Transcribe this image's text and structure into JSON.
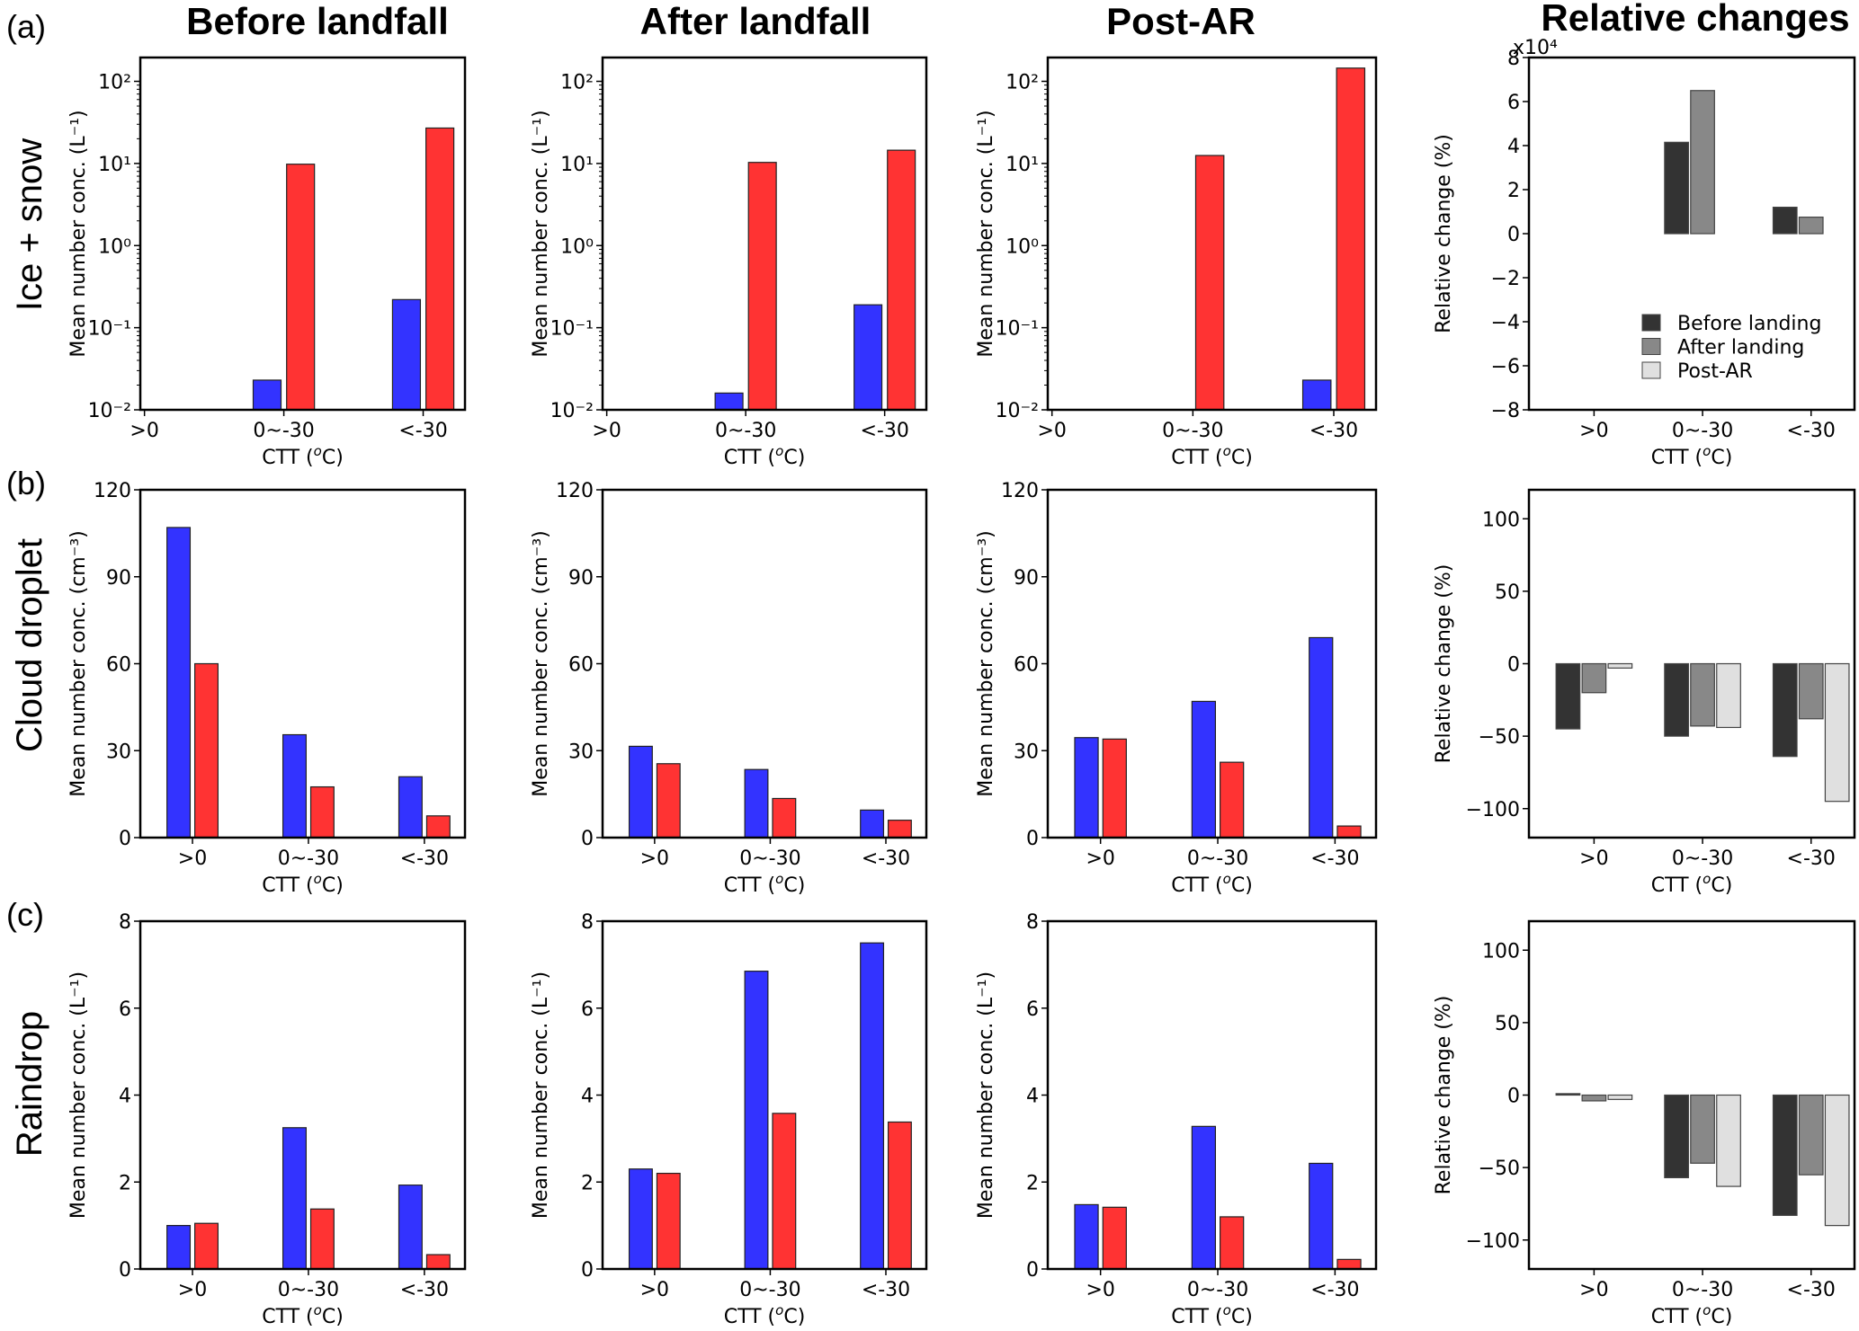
{
  "column_titles": [
    "Before landfall",
    "After landfall",
    "Post-AR",
    "Relative changes"
  ],
  "row_labels": [
    "Ice + snow",
    "Cloud droplet",
    "Raindrop"
  ],
  "panel_labels": [
    "(a)",
    "(b)",
    "(c)"
  ],
  "colors": {
    "blue": "#3333ff",
    "red": "#ff3333",
    "before_landing": "#333333",
    "after_landing": "#888888",
    "post_ar": "#e0e0e0"
  },
  "chart_data": [
    {
      "type": "bar",
      "row": "Ice + snow",
      "column": "Before landfall",
      "categories": [
        ">0",
        "0~-30",
        "<-30"
      ],
      "yscale": "log",
      "ylim": [
        0.01,
        195
      ],
      "ytick_labels": [
        "10⁻²",
        "10⁻¹",
        "10⁰",
        "10¹",
        "10²"
      ],
      "ylabel": "Mean number conc. (L⁻¹)",
      "xlabel": {
        "pre": "CTT (",
        "sup": "o",
        "post": "C)"
      },
      "series": [
        {
          "color": "#3333ff",
          "values": [
            null,
            0.023,
            0.22
          ]
        },
        {
          "color": "#ff3333",
          "values": [
            null,
            9.8,
            27
          ]
        }
      ]
    },
    {
      "type": "bar",
      "row": "Ice + snow",
      "column": "After landfall",
      "categories": [
        ">0",
        "0~-30",
        "<-30"
      ],
      "yscale": "log",
      "ylim": [
        0.01,
        195
      ],
      "ytick_labels": [
        "10⁻²",
        "10⁻¹",
        "10⁰",
        "10¹",
        "10²"
      ],
      "ylabel": "Mean number conc. (L⁻¹)",
      "xlabel": {
        "pre": "CTT (",
        "sup": "o",
        "post": "C)"
      },
      "series": [
        {
          "color": "#3333ff",
          "values": [
            null,
            0.016,
            0.19
          ]
        },
        {
          "color": "#ff3333",
          "values": [
            null,
            10.3,
            14.5
          ]
        }
      ]
    },
    {
      "type": "bar",
      "row": "Ice + snow",
      "column": "Post-AR",
      "categories": [
        ">0",
        "0~-30",
        "<-30"
      ],
      "yscale": "log",
      "ylim": [
        0.01,
        195
      ],
      "ytick_labels": [
        "10⁻²",
        "10⁻¹",
        "10⁰",
        "10¹",
        "10²"
      ],
      "ylabel": "Mean number conc. (L⁻¹)",
      "xlabel": {
        "pre": "CTT (",
        "sup": "o",
        "post": "C)"
      },
      "series": [
        {
          "color": "#3333ff",
          "values": [
            null,
            null,
            0.023
          ]
        },
        {
          "color": "#ff3333",
          "values": [
            null,
            12.5,
            145
          ]
        }
      ]
    },
    {
      "type": "bar",
      "row": "Ice + snow",
      "column": "Relative changes",
      "categories": [
        ">0",
        "0~-30",
        "<-30"
      ],
      "ylim": [
        -8,
        8
      ],
      "yticks": [
        -8,
        -6,
        -4,
        -2,
        0,
        2,
        4,
        6,
        8
      ],
      "y_multiplier": "x10⁴",
      "ylabel": "Relative change (%)",
      "xlabel": {
        "pre": "CTT (",
        "sup": "o",
        "post": "C)"
      },
      "legend": {
        "placement": "lower-right",
        "entries": [
          "Before landing",
          "After landing",
          "Post-AR"
        ]
      },
      "series": [
        {
          "name": "Before landing",
          "color": "#333333",
          "values": [
            null,
            4.15,
            1.2
          ]
        },
        {
          "name": "After landing",
          "color": "#888888",
          "values": [
            null,
            6.5,
            0.75
          ]
        },
        {
          "name": "Post-AR",
          "color": "#e0e0e0",
          "values": [
            null,
            null,
            null
          ]
        }
      ]
    },
    {
      "type": "bar",
      "row": "Cloud droplet",
      "column": "Before landfall",
      "categories": [
        ">0",
        "0~-30",
        "<-30"
      ],
      "ylim": [
        0,
        120
      ],
      "yticks": [
        0,
        30,
        60,
        90,
        120
      ],
      "ylabel": "Mean number conc. (cm⁻³)",
      "xlabel": {
        "pre": "CTT (",
        "sup": "o",
        "post": "C)"
      },
      "series": [
        {
          "color": "#3333ff",
          "values": [
            107,
            35.5,
            21
          ]
        },
        {
          "color": "#ff3333",
          "values": [
            60,
            17.5,
            7.5
          ]
        }
      ]
    },
    {
      "type": "bar",
      "row": "Cloud droplet",
      "column": "After landfall",
      "categories": [
        ">0",
        "0~-30",
        "<-30"
      ],
      "ylim": [
        0,
        120
      ],
      "yticks": [
        0,
        30,
        60,
        90,
        120
      ],
      "ylabel": "Mean number conc. (cm⁻³)",
      "xlabel": {
        "pre": "CTT (",
        "sup": "o",
        "post": "C)"
      },
      "series": [
        {
          "color": "#3333ff",
          "values": [
            31.5,
            23.5,
            9.5
          ]
        },
        {
          "color": "#ff3333",
          "values": [
            25.5,
            13.5,
            6
          ]
        }
      ]
    },
    {
      "type": "bar",
      "row": "Cloud droplet",
      "column": "Post-AR",
      "categories": [
        ">0",
        "0~-30",
        "<-30"
      ],
      "ylim": [
        0,
        120
      ],
      "yticks": [
        0,
        30,
        60,
        90,
        120
      ],
      "ylabel": "Mean number conc. (cm⁻³)",
      "xlabel": {
        "pre": "CTT (",
        "sup": "o",
        "post": "C)"
      },
      "series": [
        {
          "color": "#3333ff",
          "values": [
            34.5,
            47,
            69
          ]
        },
        {
          "color": "#ff3333",
          "values": [
            34,
            26,
            4
          ]
        }
      ]
    },
    {
      "type": "bar",
      "row": "Cloud droplet",
      "column": "Relative changes",
      "categories": [
        ">0",
        "0~-30",
        "<-30"
      ],
      "ylim": [
        -120,
        120
      ],
      "yticks": [
        -100,
        -50,
        0,
        50,
        100
      ],
      "ylabel": "Relative change (%)",
      "xlabel": {
        "pre": "CTT (",
        "sup": "o",
        "post": "C)"
      },
      "series": [
        {
          "name": "Before landing",
          "color": "#333333",
          "values": [
            -45,
            -50,
            -64
          ]
        },
        {
          "name": "After landing",
          "color": "#888888",
          "values": [
            -20,
            -43,
            -38
          ]
        },
        {
          "name": "Post-AR",
          "color": "#e0e0e0",
          "values": [
            -3,
            -44,
            -95
          ]
        }
      ]
    },
    {
      "type": "bar",
      "row": "Raindrop",
      "column": "Before landfall",
      "categories": [
        ">0",
        "0~-30",
        "<-30"
      ],
      "ylim": [
        0,
        8
      ],
      "yticks": [
        0,
        2,
        4,
        6,
        8
      ],
      "ylabel": "Mean number conc. (L⁻¹)",
      "xlabel": {
        "pre": "CTT (",
        "sup": "o",
        "post": "C)"
      },
      "series": [
        {
          "color": "#3333ff",
          "values": [
            1.0,
            3.25,
            1.93
          ]
        },
        {
          "color": "#ff3333",
          "values": [
            1.05,
            1.38,
            0.33
          ]
        }
      ]
    },
    {
      "type": "bar",
      "row": "Raindrop",
      "column": "After landfall",
      "categories": [
        ">0",
        "0~-30",
        "<-30"
      ],
      "ylim": [
        0,
        8
      ],
      "yticks": [
        0,
        2,
        4,
        6,
        8
      ],
      "ylabel": "Mean number conc. (L⁻¹)",
      "xlabel": {
        "pre": "CTT (",
        "sup": "o",
        "post": "C)"
      },
      "series": [
        {
          "color": "#3333ff",
          "values": [
            2.3,
            6.85,
            7.5
          ]
        },
        {
          "color": "#ff3333",
          "values": [
            2.2,
            3.58,
            3.38
          ]
        }
      ]
    },
    {
      "type": "bar",
      "row": "Raindrop",
      "column": "Post-AR",
      "categories": [
        ">0",
        "0~-30",
        "<-30"
      ],
      "ylim": [
        0,
        8
      ],
      "yticks": [
        0,
        2,
        4,
        6,
        8
      ],
      "ylabel": "Mean number conc. (L⁻¹)",
      "xlabel": {
        "pre": "CTT (",
        "sup": "o",
        "post": "C)"
      },
      "series": [
        {
          "color": "#3333ff",
          "values": [
            1.48,
            3.28,
            2.43
          ]
        },
        {
          "color": "#ff3333",
          "values": [
            1.42,
            1.2,
            0.22
          ]
        }
      ]
    },
    {
      "type": "bar",
      "row": "Raindrop",
      "column": "Relative changes",
      "categories": [
        ">0",
        "0~-30",
        "<-30"
      ],
      "ylim": [
        -120,
        120
      ],
      "yticks": [
        -100,
        -50,
        0,
        50,
        100
      ],
      "ylabel": "Relative change (%)",
      "xlabel": {
        "pre": "CTT (",
        "sup": "o",
        "post": "C)"
      },
      "series": [
        {
          "name": "Before landing",
          "color": "#333333",
          "values": [
            1,
            -57,
            -83
          ]
        },
        {
          "name": "After landing",
          "color": "#888888",
          "values": [
            -4,
            -47,
            -55
          ]
        },
        {
          "name": "Post-AR",
          "color": "#e0e0e0",
          "values": [
            -3,
            -63,
            -90
          ]
        }
      ]
    }
  ]
}
